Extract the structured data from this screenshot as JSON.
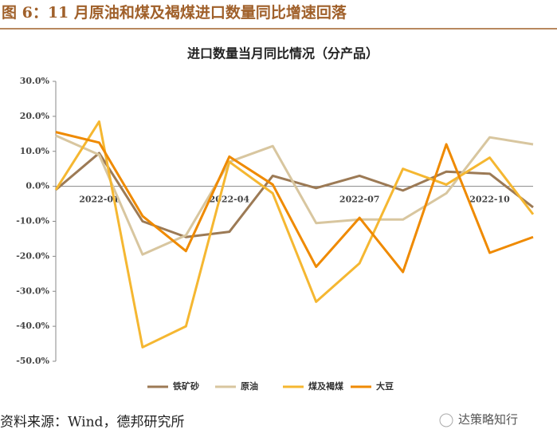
{
  "header": {
    "title": "图 6：11 月原油和煤及褐煤进口数量同比增速回落"
  },
  "chart_data": {
    "type": "line",
    "title": "进口数量当月同比情况（分产品）",
    "categories": [
      null,
      "2022-01",
      null,
      null,
      "2022-04",
      null,
      null,
      "2022-07",
      null,
      null,
      "2022-10",
      null
    ],
    "series": [
      {
        "name": "铁矿砂",
        "color": "#9c7a55",
        "values": [
          -1,
          9.5,
          -10,
          -14.5,
          -13,
          3,
          -0.5,
          3,
          -1.2,
          4.2,
          3.6,
          -6
        ]
      },
      {
        "name": "原油",
        "color": "#d8c69f",
        "values": [
          14.5,
          9,
          -19.5,
          -14,
          7,
          11.5,
          -10.5,
          -9.5,
          -9.5,
          -2,
          14,
          12
        ]
      },
      {
        "name": "煤及褐煤",
        "color": "#f5b731",
        "values": [
          -1,
          18.5,
          -46,
          -40,
          7,
          -2,
          -33,
          -22,
          5,
          0.5,
          8.2,
          -8
        ]
      },
      {
        "name": "大豆",
        "color": "#ef8a00",
        "values": [
          15.5,
          12.5,
          -8.5,
          -18.5,
          8.5,
          0.5,
          -23,
          -9,
          -24.5,
          12,
          -19,
          -14.5
        ]
      }
    ],
    "ylim": [
      -50,
      30
    ],
    "yticks": [
      {
        "value": -50,
        "label": "-50.0%"
      },
      {
        "value": -40,
        "label": "-40.0%"
      },
      {
        "value": -30,
        "label": "-30.0%"
      },
      {
        "value": -20,
        "label": "-20.0%"
      },
      {
        "value": -10,
        "label": "-10.0%"
      },
      {
        "value": 0,
        "label": "0.0%"
      },
      {
        "value": 10,
        "label": "10.0%"
      },
      {
        "value": 20,
        "label": "20.0%"
      },
      {
        "value": 30,
        "label": "30.0%"
      }
    ],
    "legend": "bottom"
  },
  "footer": {
    "source": "资料来源：Wind，德邦研究所",
    "watermark": "达策略知行"
  }
}
